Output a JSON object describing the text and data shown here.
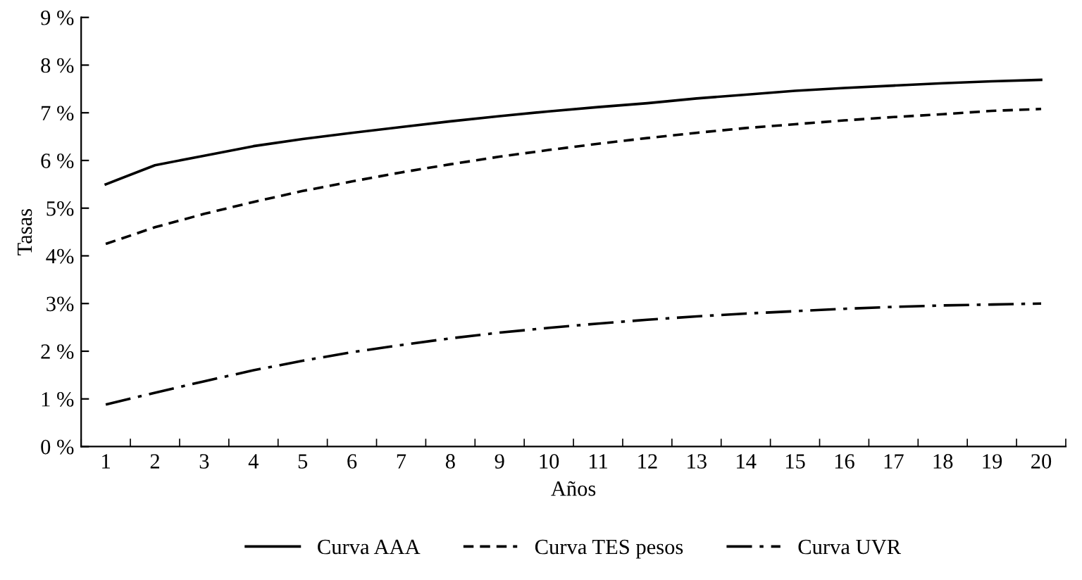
{
  "chart_data": {
    "type": "line",
    "xlabel": "Años",
    "ylabel": "Tasas",
    "categories": [
      "1",
      "2",
      "3",
      "4",
      "5",
      "6",
      "7",
      "8",
      "9",
      "10",
      "11",
      "12",
      "13",
      "14",
      "15",
      "16",
      "17",
      "18",
      "19",
      "20"
    ],
    "series": [
      {
        "name": "Curva AAA",
        "color": "#000000",
        "line_style": "solid",
        "values": [
          5.5,
          5.9,
          6.1,
          6.3,
          6.45,
          6.58,
          6.7,
          6.82,
          6.93,
          7.03,
          7.12,
          7.2,
          7.3,
          7.38,
          7.46,
          7.52,
          7.57,
          7.62,
          7.66,
          7.69
        ]
      },
      {
        "name": "Curva TES pesos",
        "color": "#000000",
        "line_style": "dashed",
        "values": [
          4.25,
          4.6,
          4.88,
          5.13,
          5.36,
          5.56,
          5.75,
          5.92,
          6.08,
          6.22,
          6.35,
          6.47,
          6.58,
          6.68,
          6.76,
          6.84,
          6.91,
          6.97,
          7.04,
          7.08
        ]
      },
      {
        "name": "Curva UVR",
        "color": "#000000",
        "line_style": "dashdot",
        "values": [
          0.88,
          1.13,
          1.37,
          1.6,
          1.8,
          1.98,
          2.13,
          2.27,
          2.39,
          2.49,
          2.58,
          2.66,
          2.73,
          2.79,
          2.84,
          2.89,
          2.93,
          2.96,
          2.98,
          3.0
        ]
      }
    ],
    "ylim": [
      0,
      9
    ],
    "yticks": [
      {
        "value": 0,
        "label": "0 %"
      },
      {
        "value": 1,
        "label": "1 %"
      },
      {
        "value": 2,
        "label": "2 %"
      },
      {
        "value": 3,
        "label": "3%"
      },
      {
        "value": 4,
        "label": "4%"
      },
      {
        "value": 5,
        "label": "5%"
      },
      {
        "value": 6,
        "label": "6 %"
      },
      {
        "value": 7,
        "label": "7 %"
      },
      {
        "value": 8,
        "label": "8 %"
      },
      {
        "value": 9,
        "label": "9 %"
      }
    ],
    "grid": false,
    "legend": "bottom",
    "marker": "none"
  }
}
